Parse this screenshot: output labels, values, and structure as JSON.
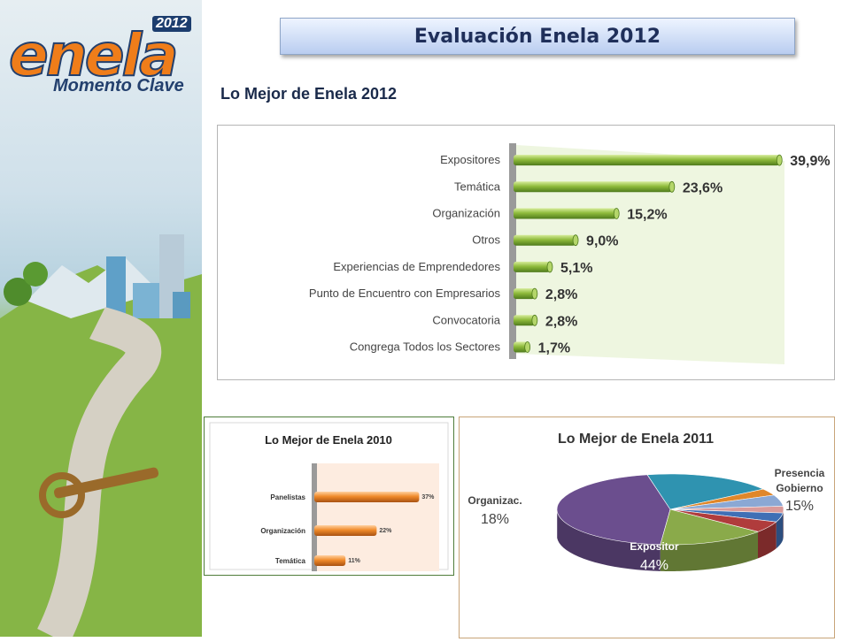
{
  "logo": {
    "brand": "enela",
    "year": "2012",
    "tagline": "Momento Clave"
  },
  "header": {
    "title": "Evaluación Enela 2012"
  },
  "section_title": "Lo Mejor de Enela 2012",
  "colors": {
    "bar_green": "#8fbb3c",
    "bar_orange": "#f08a2a",
    "title_blue": "#b9cdf0"
  },
  "chart_data": [
    {
      "type": "bar",
      "orientation": "horizontal",
      "title": "",
      "categories": [
        "Expositores",
        "Temática",
        "Organización",
        "Otros",
        "Experiencias de Emprendedores",
        "Punto de Encuentro con Empresarios",
        "Convocatoria",
        "Congrega Todos los Sectores"
      ],
      "values": [
        39.9,
        23.6,
        15.2,
        9.0,
        5.1,
        2.8,
        2.8,
        1.7
      ],
      "value_labels": [
        "39,9%",
        "23,6%",
        "15,2%",
        "9,0%",
        "5,1%",
        "2,8%",
        "2,8%",
        "1,7%"
      ],
      "xlim": [
        0,
        40
      ]
    },
    {
      "type": "bar",
      "orientation": "horizontal",
      "title": "Lo Mejor de Enela 2010",
      "categories": [
        "Panelistas",
        "Organización",
        "Temática"
      ],
      "values": [
        37,
        22,
        11
      ],
      "value_labels": [
        "37%",
        "22%",
        "11%"
      ],
      "xlim": [
        0,
        40
      ]
    },
    {
      "type": "pie",
      "title": "Lo Mejor de Enela 2011",
      "slices": [
        {
          "label": "Expositor",
          "value": 44,
          "text": "44%",
          "color": "#6b4e8e"
        },
        {
          "label": "Organizac.",
          "value": 18,
          "text": "18%",
          "color": "#2f93b0"
        },
        {
          "label": "",
          "value": 3,
          "text": "",
          "color": "#e0872a"
        },
        {
          "label": "",
          "value": 5,
          "text": "",
          "color": "#8ba8d4"
        },
        {
          "label": "",
          "value": 3,
          "text": "",
          "color": "#d99a9a"
        },
        {
          "label": "",
          "value": 4,
          "text": "",
          "color": "#3f6fb5"
        },
        {
          "label": "",
          "value": 5,
          "text": "",
          "color": "#b03c3c"
        },
        {
          "label": "Presencia Gobierno",
          "value": 15,
          "text": "15%",
          "color": "#8aaa4a"
        }
      ],
      "label_lines": {
        "organizac": [
          "Organizac."
        ],
        "presencia": [
          "Presencia",
          "Gobierno"
        ]
      }
    }
  ]
}
